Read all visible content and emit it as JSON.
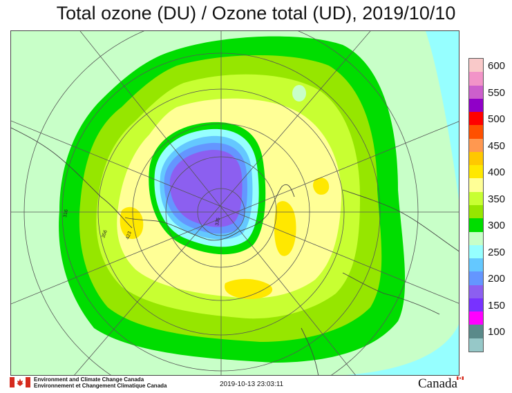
{
  "title": "Total ozone (DU) / Ozone total (UD), 2019/10/10",
  "legend": {
    "labels": [
      "600",
      "550",
      "500",
      "450",
      "400",
      "350",
      "300",
      "250",
      "200",
      "150",
      "100"
    ],
    "colors": [
      "#f9c9c9",
      "#f294c8",
      "#cc5fcc",
      "#9000c8",
      "#ff0000",
      "#ff5000",
      "#ff9850",
      "#ffc800",
      "#ffe800",
      "#ffff96",
      "#c8ff32",
      "#96e600",
      "#00dd00",
      "#c8ffc8",
      "#96ffff",
      "#64c8ff",
      "#6496ff",
      "#8c5ff0",
      "#7832ff",
      "#ff00ff",
      "#5a8a8a",
      "#96c8c8"
    ]
  },
  "map": {
    "colors": {
      "ocean_outer": "#96ffff",
      "band_300": "#c8ffc8",
      "band_325": "#00dd00",
      "band_350": "#96e600",
      "band_375": "#c8ff32",
      "band_400": "#ffff96",
      "band_425": "#ffe800",
      "hole_250": "#96ffff",
      "hole_225": "#64c8ff",
      "hole_200": "#6496ff",
      "hole_core": "#8c5ff0"
    },
    "contour_labels": [
      "316",
      "356",
      "423",
      "335"
    ]
  },
  "footer": {
    "agency_en": "Environment and Climate Change Canada",
    "agency_fr": "Environnement et Changement Climatique Canada",
    "timestamp": "2019-10-13 23:03:11",
    "wordmark": "Canada"
  }
}
